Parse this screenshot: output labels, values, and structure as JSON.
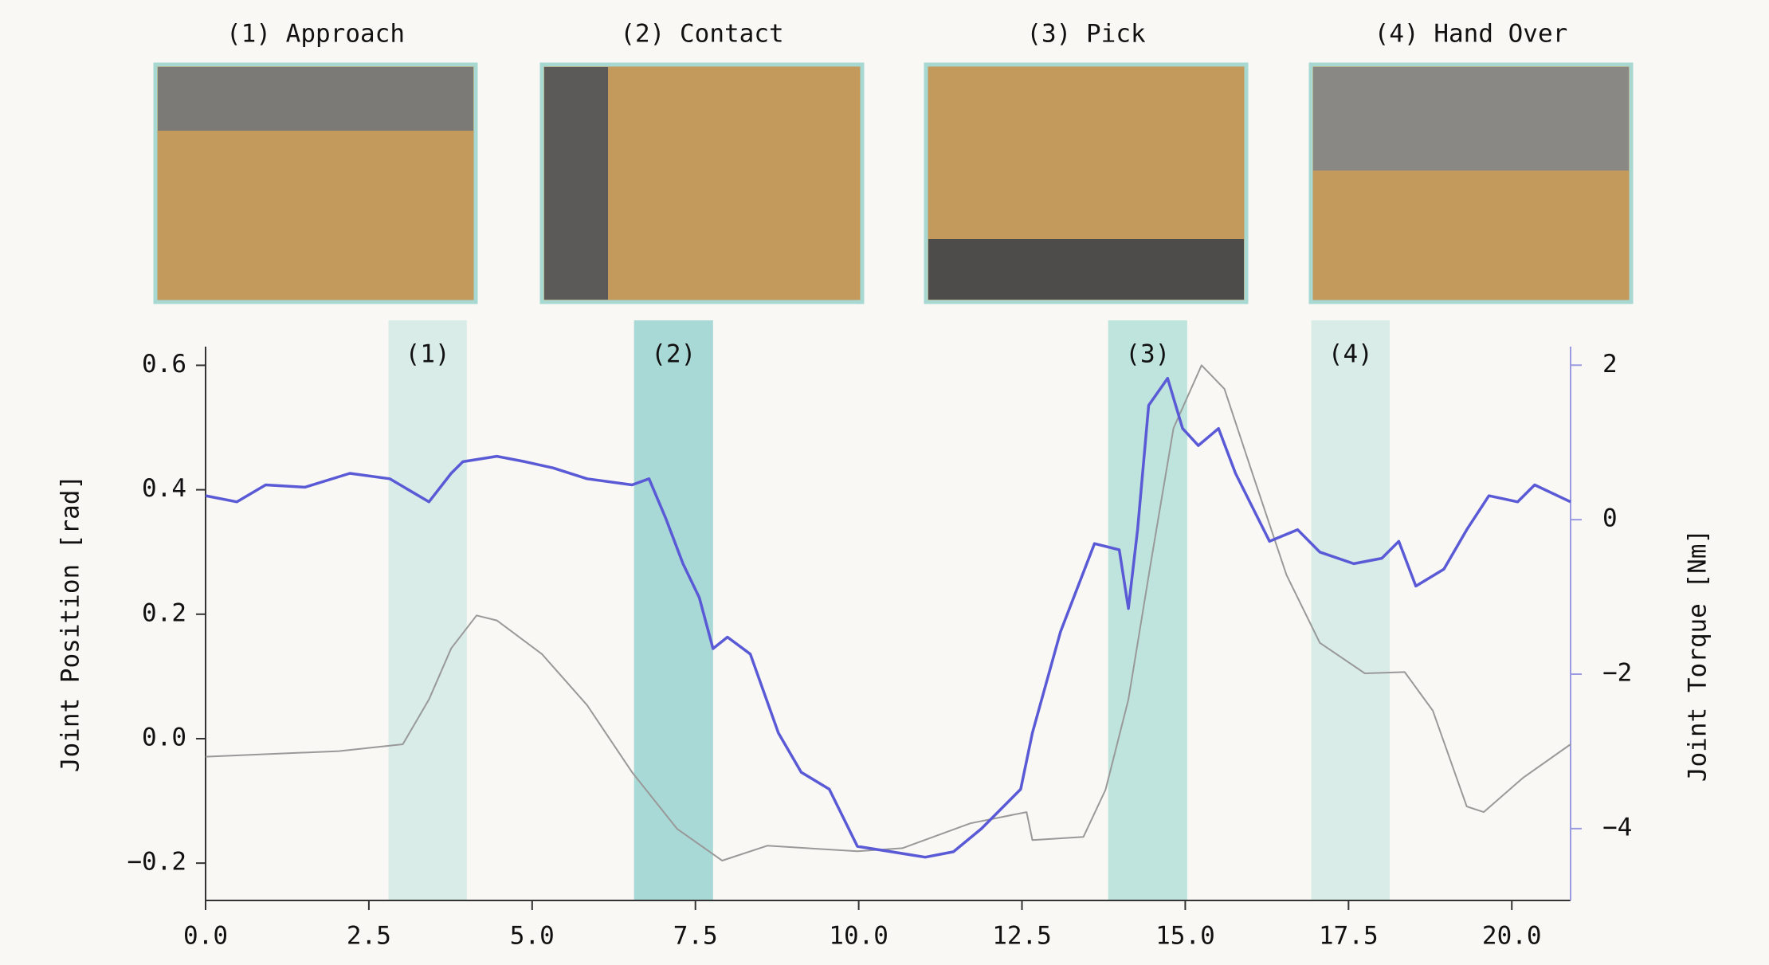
{
  "frames": [
    {
      "caption": "(1) Approach"
    },
    {
      "caption": "(2) Contact"
    },
    {
      "caption": "(3) Pick"
    },
    {
      "caption": "(4) Hand Over"
    }
  ],
  "chart_data": {
    "type": "line",
    "ylabel": "Joint Position [rad]",
    "y2label": "Joint Torque [Nm]",
    "xlim": [
      0,
      20.9
    ],
    "ylim": [
      -0.26,
      0.63
    ],
    "y2lim": [
      -4.93,
      2.24
    ],
    "xticks": [
      {
        "value": 0,
        "label": "0.0"
      },
      2.5,
      {
        "value": 5,
        "label": "5.0"
      },
      7.5,
      {
        "value": 10,
        "label": "10.0"
      },
      12.5,
      {
        "value": 15,
        "label": "15.0"
      },
      17.5,
      {
        "value": 20,
        "label": "20.0"
      }
    ],
    "yticks": [
      {
        "value": -0.2,
        "label": "−0.2"
      },
      {
        "value": 0,
        "label": "0.0"
      },
      0.2,
      0.4,
      0.6
    ],
    "y2ticks": [
      {
        "value": -4,
        "label": "−4"
      },
      {
        "value": -2,
        "label": "−2"
      },
      0,
      2
    ],
    "regions": [
      {
        "label": "(1)",
        "x": [
          2.8,
          4.0
        ],
        "color": "#d9ece8"
      },
      {
        "label": "(2)",
        "x": [
          6.56,
          7.77
        ],
        "color": "#a9d9d6"
      },
      {
        "label": "(3)",
        "x": [
          13.82,
          15.03
        ],
        "color": "#bfe4dd"
      },
      {
        "label": "(4)",
        "x": [
          16.93,
          18.13
        ],
        "color": "#d9ece8"
      }
    ],
    "series": [
      {
        "color": "#999999",
        "x": [
          0,
          2.04,
          3.02,
          3.42,
          3.76,
          4.15,
          4.46,
          5.15,
          5.84,
          6.53,
          7.22,
          7.91,
          8.6,
          9.98,
          10.67,
          11.71,
          12.57,
          12.66,
          13.44,
          13.78,
          14.13,
          14.47,
          14.82,
          15.25,
          15.6,
          16.03,
          16.55,
          17.06,
          17.75,
          18.36,
          18.79,
          19.31,
          19.57,
          20.17,
          20.9
        ],
        "values": [
          -0.029,
          -0.02,
          -0.009,
          0.063,
          0.145,
          0.198,
          0.19,
          0.136,
          0.054,
          -0.054,
          -0.145,
          -0.196,
          -0.172,
          -0.181,
          -0.176,
          -0.136,
          -0.118,
          -0.163,
          -0.158,
          -0.082,
          0.063,
          0.281,
          0.499,
          0.6,
          0.562,
          0.426,
          0.263,
          0.154,
          0.105,
          0.107,
          0.045,
          -0.109,
          -0.118,
          -0.063,
          -0.009
        ]
      },
      {
        "color": "#5a5ad6",
        "axis": "y2",
        "x": [
          0,
          0.48,
          0.92,
          1.52,
          2.21,
          2.82,
          3.42,
          3.76,
          3.94,
          4.46,
          4.89,
          5.32,
          5.84,
          6.53,
          6.79,
          7.05,
          7.31,
          7.56,
          7.77,
          7.99,
          8.34,
          8.77,
          9.12,
          9.55,
          9.98,
          10.5,
          11.02,
          11.45,
          11.88,
          12.48,
          12.66,
          13.09,
          13.61,
          13.99,
          14.13,
          14.27,
          14.44,
          14.73,
          14.96,
          15.2,
          15.51,
          15.77,
          16.03,
          16.29,
          16.72,
          17.06,
          17.58,
          18.01,
          18.27,
          18.53,
          18.96,
          19.31,
          19.65,
          20.09,
          20.35,
          20.9
        ],
        "values": [
          0.31,
          0.23,
          0.45,
          0.42,
          0.6,
          0.53,
          0.23,
          0.6,
          0.75,
          0.82,
          0.75,
          0.67,
          0.53,
          0.45,
          0.53,
          0.01,
          -0.57,
          -1.01,
          -1.67,
          -1.52,
          -1.74,
          -2.76,
          -3.27,
          -3.49,
          -4.23,
          -4.3,
          -4.37,
          -4.3,
          -4.0,
          -3.49,
          -2.76,
          -1.45,
          -0.31,
          -0.39,
          -1.15,
          -0.13,
          1.48,
          1.83,
          1.18,
          0.96,
          1.18,
          0.6,
          0.16,
          -0.28,
          -0.13,
          -0.42,
          -0.57,
          -0.5,
          -0.28,
          -0.86,
          -0.64,
          -0.13,
          0.31,
          0.23,
          0.45,
          0.23
        ]
      }
    ]
  }
}
